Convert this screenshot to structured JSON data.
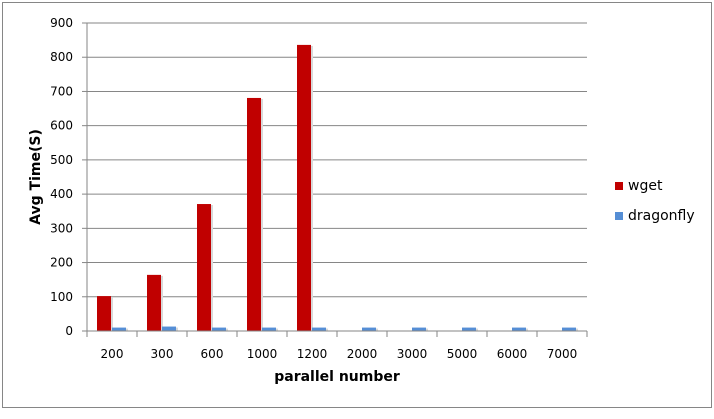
{
  "chart_data": {
    "type": "bar",
    "title": "",
    "xlabel": "parallel number",
    "ylabel": "Avg Time(S)",
    "categories": [
      "200",
      "300",
      "600",
      "1000",
      "1200",
      "2000",
      "3000",
      "5000",
      "6000",
      "7000"
    ],
    "series": [
      {
        "name": "wget",
        "color": "#c00000",
        "values": [
          102,
          164,
          371,
          681,
          836,
          null,
          null,
          null,
          null,
          null
        ]
      },
      {
        "name": "dragonfly",
        "color": "#558ed5",
        "values": [
          10,
          13,
          10,
          10,
          10,
          10,
          10,
          10,
          10,
          10
        ]
      }
    ],
    "ylim": [
      0,
      900
    ],
    "yticks": [
      0,
      100,
      200,
      300,
      400,
      500,
      600,
      700,
      800,
      900
    ],
    "grid": true,
    "legend": "right"
  }
}
